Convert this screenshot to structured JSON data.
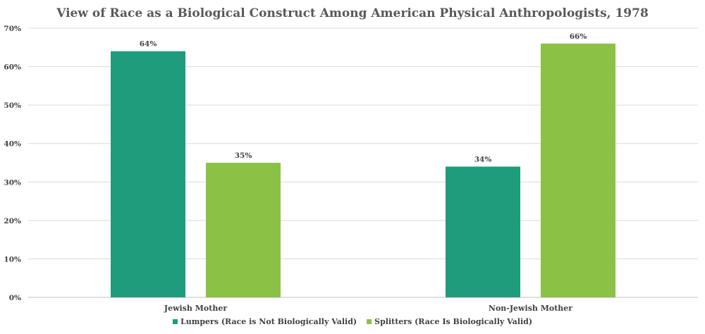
{
  "chart_data": {
    "type": "bar",
    "title": "View of Race as a Biological Construct Among American Physical Anthropologists, 1978",
    "categories": [
      "Jewish Mother",
      "Non-Jewish Mother"
    ],
    "series": [
      {
        "name": "Lumpers (Race is Not Biologically Valid)",
        "color": "#1e9c7c",
        "values": [
          64,
          34
        ],
        "labels": [
          "64%",
          "34%"
        ]
      },
      {
        "name": "Splitters (Race Is Biologically Valid)",
        "color": "#8bc145",
        "values": [
          35,
          66
        ],
        "labels": [
          "35%",
          "66%"
        ]
      }
    ],
    "ylim": [
      0,
      70
    ],
    "yticks": [
      {
        "value": 0,
        "label": "0%"
      },
      {
        "value": 10,
        "label": "10%"
      },
      {
        "value": 20,
        "label": "20%"
      },
      {
        "value": 30,
        "label": "30%"
      },
      {
        "value": 40,
        "label": "40%"
      },
      {
        "value": 50,
        "label": "50%"
      },
      {
        "value": 60,
        "label": "60%"
      },
      {
        "value": 70,
        "label": "70%"
      }
    ],
    "grid": true,
    "legend_position": "bottom",
    "xlabel": "",
    "ylabel": ""
  }
}
